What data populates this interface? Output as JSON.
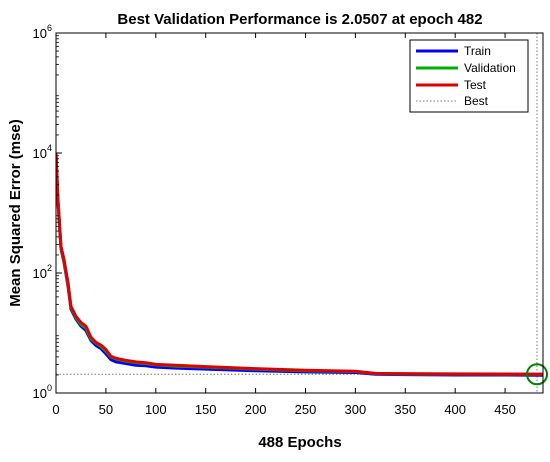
{
  "chart_data": {
    "type": "line",
    "title": "Best Validation Performance is 2.0507 at epoch 482",
    "xlabel": "488 Epochs",
    "ylabel": "Mean Squared Error  (mse)",
    "xlim": [
      0,
      488
    ],
    "ylim": [
      1,
      1000000
    ],
    "yscale": "log",
    "grid": false,
    "legend_position": "top-right",
    "x_ticks": [
      0,
      50,
      100,
      150,
      200,
      250,
      300,
      350,
      400,
      450
    ],
    "y_ticks": [
      {
        "value": 1,
        "base": "10",
        "exp": "0"
      },
      {
        "value": 100,
        "base": "10",
        "exp": "2"
      },
      {
        "value": 10000,
        "base": "10",
        "exp": "4"
      },
      {
        "value": 1000000,
        "base": "10",
        "exp": "6"
      }
    ],
    "series": [
      {
        "name": "Train",
        "color": "#0000ff",
        "x": [
          0,
          2,
          5,
          8,
          12,
          15,
          20,
          25,
          30,
          35,
          40,
          45,
          50,
          55,
          60,
          70,
          80,
          90,
          100,
          120,
          150,
          200,
          250,
          300,
          320,
          350,
          400,
          450,
          482,
          488
        ],
        "y": [
          9000,
          1500,
          250,
          150,
          60,
          25,
          17,
          13,
          11,
          7.5,
          6.2,
          5.5,
          4.5,
          3.6,
          3.3,
          3.1,
          2.9,
          2.85,
          2.7,
          2.6,
          2.5,
          2.35,
          2.25,
          2.2,
          2.05,
          2.02,
          2.0,
          2.0,
          1.98,
          1.98
        ]
      },
      {
        "name": "Validation",
        "color": "#00b000",
        "x": [
          0,
          2,
          5,
          8,
          12,
          15,
          20,
          25,
          30,
          35,
          40,
          45,
          50,
          55,
          60,
          70,
          80,
          90,
          100,
          120,
          150,
          200,
          250,
          300,
          320,
          350,
          400,
          450,
          482,
          488
        ],
        "y": [
          9500,
          1600,
          260,
          160,
          65,
          27,
          18,
          14,
          12,
          8,
          6.8,
          6,
          5,
          4,
          3.7,
          3.4,
          3.2,
          3.1,
          2.95,
          2.8,
          2.7,
          2.5,
          2.35,
          2.28,
          2.1,
          2.07,
          2.06,
          2.055,
          2.0507,
          2.055
        ]
      },
      {
        "name": "Test",
        "color": "#e00000",
        "x": [
          0,
          2,
          5,
          8,
          12,
          15,
          20,
          25,
          30,
          35,
          40,
          45,
          50,
          55,
          60,
          70,
          80,
          90,
          100,
          120,
          150,
          200,
          250,
          300,
          320,
          350,
          400,
          450,
          482,
          488
        ],
        "y": [
          9800,
          1700,
          280,
          170,
          70,
          28,
          19,
          15,
          13,
          8.5,
          7,
          6.3,
          5.3,
          4.1,
          3.8,
          3.5,
          3.3,
          3.2,
          3.0,
          2.9,
          2.75,
          2.55,
          2.4,
          2.3,
          2.12,
          2.1,
          2.08,
          2.07,
          2.06,
          2.06
        ]
      }
    ],
    "legend": [
      "Train",
      "Validation",
      "Test",
      "Best"
    ],
    "best": {
      "epoch": 482,
      "value": 2.0507,
      "line_color": "#777777",
      "marker_color": "#007f00"
    }
  }
}
